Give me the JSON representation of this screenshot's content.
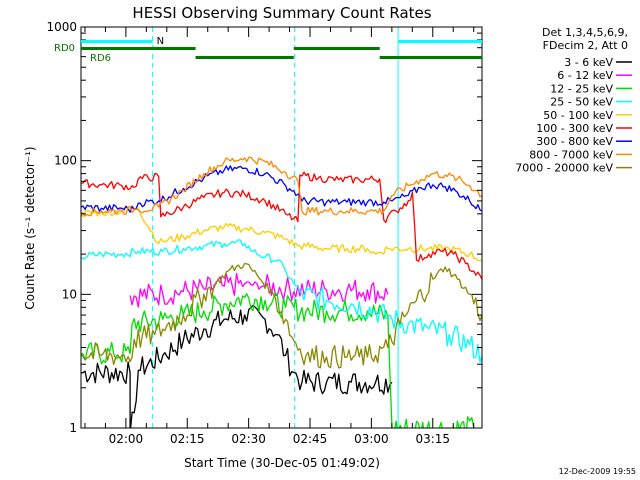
{
  "chart_data": {
    "type": "line",
    "title": "HESSI Observing Summary Count Rates",
    "xlabel": "Start Time (30-Dec-05 01:49:02)",
    "ylabel": "Count Rate (s⁻¹ detector⁻¹)",
    "yscale": "log",
    "ylim": [
      1,
      1000
    ],
    "xlim_minutes_after_start": [
      0,
      98
    ],
    "x_tick_labels": [
      "02:00",
      "02:15",
      "02:30",
      "02:45",
      "03:00",
      "03:15"
    ],
    "x_tick_minutes": [
      10.97,
      25.97,
      40.97,
      55.97,
      70.97,
      85.97
    ],
    "y_tick_labels": [
      "1",
      "10",
      "100",
      "1000"
    ],
    "y_tick_values": [
      1,
      10,
      100,
      1000
    ],
    "legend": {
      "placement": "right",
      "header": [
        "Det 1,3,4,5,6,9,",
        "FDecim 2, Att 0"
      ],
      "entries": [
        {
          "label": "3 - 6 keV",
          "color": "#000000"
        },
        {
          "label": "6 - 12 keV",
          "color": "#ff00ff"
        },
        {
          "label": "12 - 25 keV",
          "color": "#00dd00"
        },
        {
          "label": "25 - 50 keV",
          "color": "#00ffff"
        },
        {
          "label": "50 - 100 keV",
          "color": "#ffcc00"
        },
        {
          "label": "100 - 300 keV",
          "color": "#ff0000"
        },
        {
          "label": "300 - 800 keV",
          "color": "#0000ff"
        },
        {
          "label": "800 - 7000 keV",
          "color": "#ff8800"
        },
        {
          "label": "7000 - 20000 keV",
          "color": "#888800"
        }
      ]
    },
    "flag_labels": {
      "saa": "N",
      "rd0": "RD0",
      "rd6": "RD6"
    },
    "flag_colors": {
      "night": "#00ffff",
      "rd": "#007700"
    },
    "series": [
      {
        "name": "3 - 6 keV",
        "color": "#000000",
        "points": [
          [
            0,
            2.6
          ],
          [
            12,
            2.6
          ],
          [
            12,
            0.9
          ],
          [
            13,
            1.3
          ],
          [
            14,
            2.7
          ],
          [
            20,
            3.5
          ],
          [
            25,
            4.5
          ],
          [
            30,
            5.5
          ],
          [
            35,
            6.5
          ],
          [
            40,
            7.0
          ],
          [
            45,
            6.5
          ],
          [
            48,
            5.0
          ],
          [
            50,
            3.5
          ],
          [
            52,
            2.6
          ],
          [
            54,
            2.2
          ],
          [
            60,
            2.2
          ],
          [
            66,
            2.2
          ],
          [
            72,
            2.2
          ],
          [
            76,
            2.2
          ]
        ]
      },
      {
        "name": "6 - 12 keV",
        "color": "#ff00ff",
        "points": [
          [
            12,
            9.8
          ],
          [
            20,
            10.0
          ],
          [
            25,
            10.5
          ],
          [
            30,
            11.0
          ],
          [
            35,
            11.5
          ],
          [
            40,
            12.0
          ],
          [
            45,
            11.5
          ],
          [
            50,
            11.0
          ],
          [
            55,
            10.8
          ],
          [
            60,
            10.8
          ],
          [
            65,
            10.8
          ],
          [
            70,
            10.8
          ],
          [
            75,
            10.0
          ]
        ]
      },
      {
        "name": "12 - 25 keV",
        "color": "#00dd00",
        "points": [
          [
            0,
            3.6
          ],
          [
            8,
            3.6
          ],
          [
            12,
            3.6
          ],
          [
            12.5,
            6.0
          ],
          [
            20,
            6.5
          ],
          [
            25,
            7.0
          ],
          [
            30,
            7.5
          ],
          [
            35,
            8.5
          ],
          [
            40,
            9.5
          ],
          [
            45,
            9.0
          ],
          [
            50,
            8.0
          ],
          [
            55,
            7.5
          ],
          [
            60,
            7.5
          ],
          [
            65,
            7.5
          ],
          [
            70,
            7.5
          ],
          [
            75,
            6.8
          ],
          [
            76,
            1.0
          ],
          [
            90,
            1.0
          ],
          [
            96,
            1.0
          ]
        ]
      },
      {
        "name": "25 - 50 keV",
        "color": "#00ffff",
        "points": [
          [
            0,
            19
          ],
          [
            5,
            20
          ],
          [
            10,
            20
          ],
          [
            14,
            21
          ],
          [
            20,
            21
          ],
          [
            25,
            22
          ],
          [
            30,
            23
          ],
          [
            35,
            24
          ],
          [
            40,
            24
          ],
          [
            42,
            21
          ],
          [
            45,
            19
          ],
          [
            48,
            18
          ],
          [
            50,
            15
          ],
          [
            52,
            12
          ],
          [
            54,
            10
          ],
          [
            60,
            9
          ],
          [
            66,
            8.5
          ],
          [
            72,
            7.5
          ],
          [
            76,
            6.5
          ],
          [
            80,
            6.0
          ],
          [
            85,
            5.5
          ],
          [
            90,
            5.0
          ],
          [
            95,
            4.2
          ],
          [
            98,
            3.5
          ]
        ]
      },
      {
        "name": "50 - 100 keV",
        "color": "#ffcc00",
        "points": [
          [
            0,
            40
          ],
          [
            5,
            41
          ],
          [
            10,
            42
          ],
          [
            13,
            44
          ],
          [
            14,
            44
          ],
          [
            19,
            24
          ],
          [
            20,
            25
          ],
          [
            25,
            27
          ],
          [
            30,
            30
          ],
          [
            35,
            32
          ],
          [
            40,
            31
          ],
          [
            45,
            29
          ],
          [
            50,
            26
          ],
          [
            53,
            23
          ],
          [
            55,
            23
          ],
          [
            60,
            22
          ],
          [
            65,
            22
          ],
          [
            70,
            22
          ],
          [
            72,
            20
          ],
          [
            75,
            22
          ],
          [
            80,
            22
          ],
          [
            85,
            22
          ],
          [
            90,
            22
          ],
          [
            95,
            20
          ],
          [
            98,
            18
          ]
        ]
      },
      {
        "name": "100 - 300 keV",
        "color": "#ff0000",
        "points": [
          [
            0,
            68
          ],
          [
            5,
            66
          ],
          [
            10,
            65
          ],
          [
            13,
            63
          ],
          [
            14,
            73
          ],
          [
            19,
            76
          ],
          [
            19.5,
            38
          ],
          [
            25,
            45
          ],
          [
            30,
            53
          ],
          [
            35,
            58
          ],
          [
            40,
            56
          ],
          [
            45,
            50
          ],
          [
            50,
            40
          ],
          [
            53,
            35
          ],
          [
            53.5,
            78
          ],
          [
            58,
            74
          ],
          [
            63,
            72
          ],
          [
            68,
            72
          ],
          [
            73,
            73
          ],
          [
            74,
            36
          ],
          [
            77,
            42
          ],
          [
            80,
            50
          ],
          [
            81,
            58
          ],
          [
            82,
            18
          ],
          [
            85,
            20
          ],
          [
            88,
            21
          ],
          [
            91,
            20
          ],
          [
            94,
            17
          ],
          [
            98,
            13
          ]
        ]
      },
      {
        "name": "300 - 800 keV",
        "color": "#0000ff",
        "points": [
          [
            0,
            45
          ],
          [
            5,
            44
          ],
          [
            10,
            44
          ],
          [
            13,
            43
          ],
          [
            14,
            48
          ],
          [
            19,
            50
          ],
          [
            25,
            62
          ],
          [
            30,
            74
          ],
          [
            35,
            85
          ],
          [
            40,
            88
          ],
          [
            45,
            80
          ],
          [
            50,
            65
          ],
          [
            53,
            56
          ],
          [
            54,
            50
          ],
          [
            60,
            49
          ],
          [
            65,
            49
          ],
          [
            70,
            49
          ],
          [
            74,
            49
          ],
          [
            76,
            50
          ],
          [
            80,
            55
          ],
          [
            83,
            63
          ],
          [
            86,
            66
          ],
          [
            89,
            64
          ],
          [
            92,
            58
          ],
          [
            95,
            50
          ],
          [
            98,
            42
          ]
        ]
      },
      {
        "name": "800 - 7000 keV",
        "color": "#ff8800",
        "points": [
          [
            0,
            41
          ],
          [
            5,
            42
          ],
          [
            10,
            42
          ],
          [
            13,
            43
          ],
          [
            14,
            43
          ],
          [
            19,
            45
          ],
          [
            25,
            60
          ],
          [
            30,
            80
          ],
          [
            35,
            98
          ],
          [
            40,
            105
          ],
          [
            45,
            98
          ],
          [
            50,
            82
          ],
          [
            53,
            70
          ],
          [
            54,
            42
          ],
          [
            60,
            42
          ],
          [
            65,
            42
          ],
          [
            70,
            42
          ],
          [
            74,
            42
          ],
          [
            76,
            55
          ],
          [
            80,
            65
          ],
          [
            83,
            72
          ],
          [
            86,
            80
          ],
          [
            89,
            78
          ],
          [
            92,
            73
          ],
          [
            95,
            65
          ],
          [
            98,
            55
          ]
        ]
      },
      {
        "name": "7000 - 20000 keV",
        "color": "#888800",
        "points": [
          [
            0,
            3.6
          ],
          [
            5,
            3.5
          ],
          [
            10,
            3.5
          ],
          [
            12.5,
            3.4
          ],
          [
            13,
            4.6
          ],
          [
            18,
            5.0
          ],
          [
            20,
            5.5
          ],
          [
            25,
            7.0
          ],
          [
            30,
            10.0
          ],
          [
            33,
            12.0
          ],
          [
            36,
            15.0
          ],
          [
            40,
            17.0
          ],
          [
            43,
            14.0
          ],
          [
            47,
            10.0
          ],
          [
            50,
            6.5
          ],
          [
            52,
            4.5
          ],
          [
            55,
            3.5
          ],
          [
            60,
            3.4
          ],
          [
            65,
            3.4
          ],
          [
            70,
            3.4
          ],
          [
            75,
            4.0
          ],
          [
            78,
            6.0
          ],
          [
            82,
            9.0
          ],
          [
            86,
            13.0
          ],
          [
            89,
            16.0
          ],
          [
            92,
            13.0
          ],
          [
            95,
            10.0
          ],
          [
            98,
            7.0
          ]
        ]
      }
    ],
    "night_periods": [
      [
        0,
        17.5
      ],
      [
        77.5,
        98
      ]
    ],
    "rd0_segments": [
      [
        0,
        28
      ],
      [
        52,
        73
      ]
    ],
    "rd6_segments": [
      [
        28,
        52
      ],
      [
        73,
        98
      ]
    ],
    "vertical_dashed_markers": [
      17.5,
      52.2
    ],
    "vertical_solid_markers": [
      0,
      77.5,
      98
    ]
  },
  "footer_timestamp": "12-Dec-2009 19:55"
}
